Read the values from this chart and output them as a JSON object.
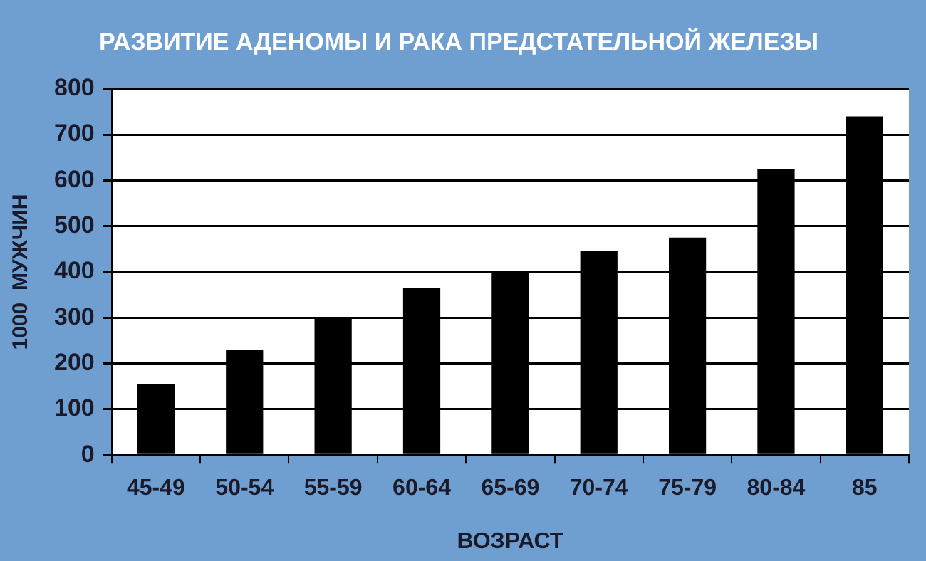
{
  "chart_data": {
    "type": "bar",
    "title": "РАЗВИТИЕ АДЕНОМЫ И РАКА ПРЕДСТАТЕЛЬНОЙ ЖЕЛЕЗЫ",
    "xlabel": "ВОЗРАСТ",
    "ylabel": "1000  МУЖЧИН",
    "categories": [
      "45-49",
      "50-54",
      "55-59",
      "60-64",
      "65-69",
      "70-74",
      "75-79",
      "80-84",
      "85"
    ],
    "values": [
      155,
      230,
      300,
      365,
      400,
      445,
      475,
      625,
      740
    ],
    "color": "#000000",
    "ylim": [
      0,
      800
    ],
    "yticks": [
      0,
      100,
      200,
      300,
      400,
      500,
      600,
      700,
      800
    ],
    "grid": "y"
  }
}
